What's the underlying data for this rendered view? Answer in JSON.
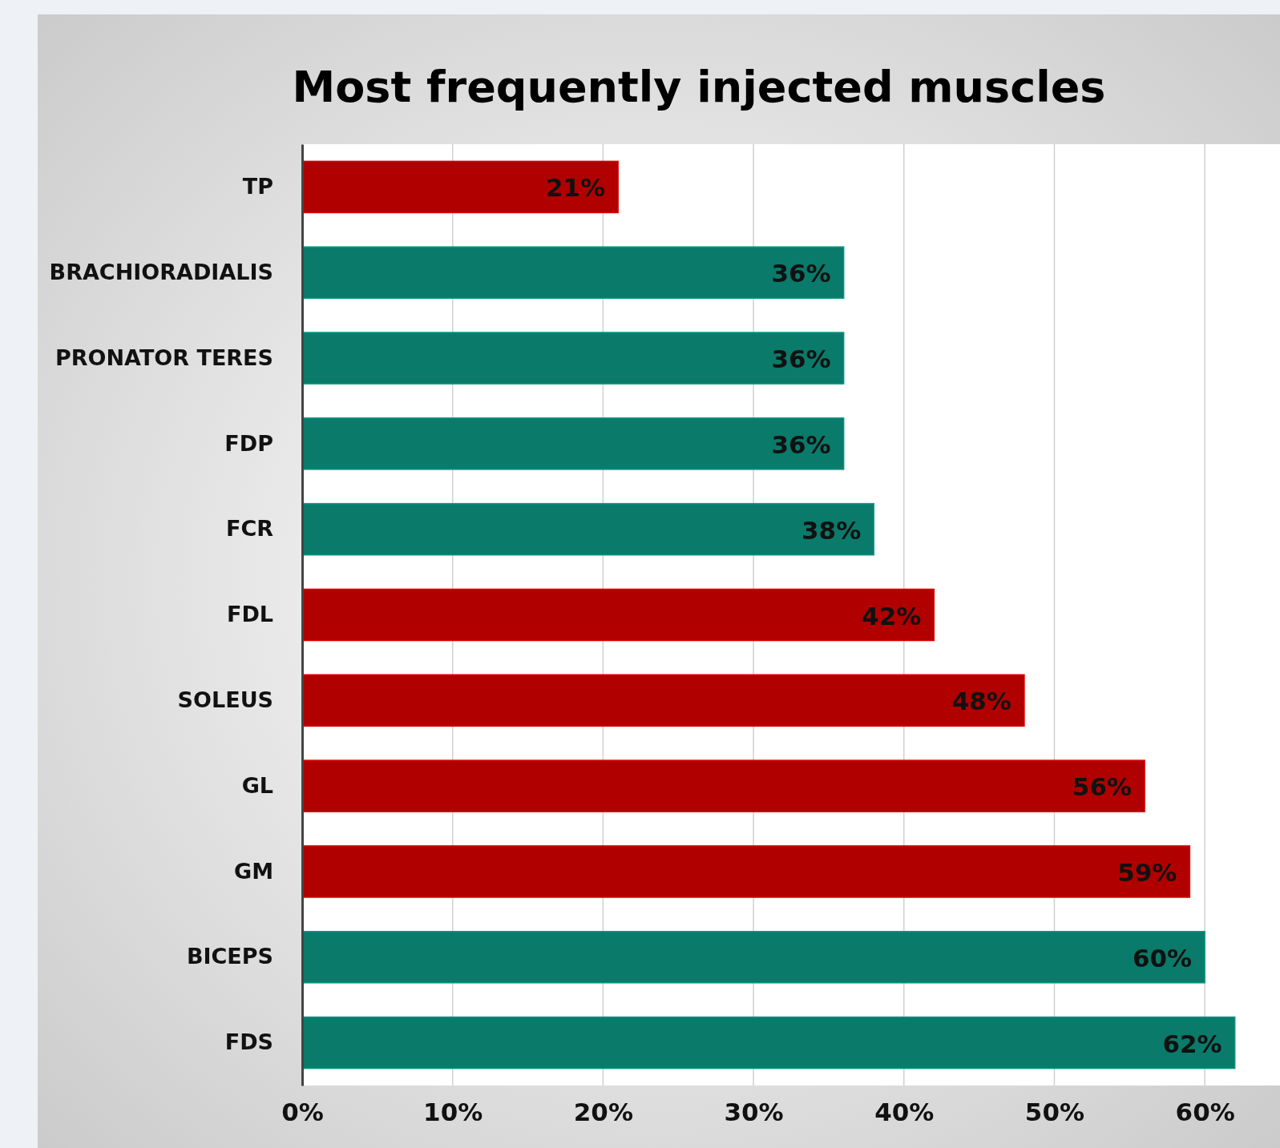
{
  "chart_data": {
    "type": "bar",
    "orientation": "horizontal",
    "title": "Most frequently injected muscles",
    "categories": [
      "TP",
      "BRACHIORADIALIS",
      "PRONATOR TERES",
      "FDP",
      "FCR",
      "FDL",
      "SOLEUS",
      "GL",
      "GM",
      "BICEPS",
      "FDS"
    ],
    "values": [
      21,
      36,
      36,
      36,
      38,
      42,
      48,
      56,
      59,
      60,
      62
    ],
    "colors": [
      "#b00000",
      "#0a7a6a",
      "#0a7a6a",
      "#0a7a6a",
      "#0a7a6a",
      "#b00000",
      "#b00000",
      "#b00000",
      "#b00000",
      "#0a7a6a",
      "#0a7a6a"
    ],
    "value_labels": [
      "21%",
      "36%",
      "36%",
      "36%",
      "38%",
      "42%",
      "48%",
      "56%",
      "59%",
      "60%",
      "62%"
    ],
    "xlim": [
      0,
      65
    ],
    "xticks": [
      {
        "value": 0,
        "label": "0%"
      },
      {
        "value": 10,
        "label": "10%"
      },
      {
        "value": 20,
        "label": "20%"
      },
      {
        "value": 30,
        "label": "30%"
      },
      {
        "value": 40,
        "label": "40%"
      },
      {
        "value": 50,
        "label": "50%"
      },
      {
        "value": 60,
        "label": "60%"
      }
    ],
    "grid": "x"
  }
}
